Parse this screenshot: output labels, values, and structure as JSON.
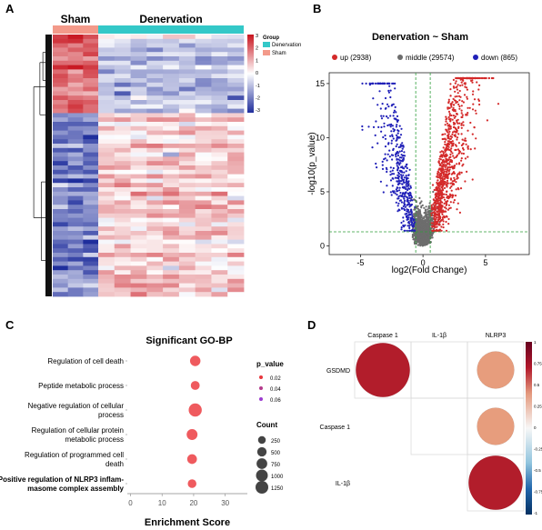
{
  "panels": {
    "A": {
      "letter": "A",
      "groups": [
        "Sham",
        "Denervation"
      ],
      "legend_title": "Group",
      "legend_items": [
        {
          "label": "Denervation",
          "color": "#34c8c8"
        },
        {
          "label": "Sham",
          "color": "#f39a8a"
        }
      ],
      "colorbar_ticks": [
        "3",
        "2",
        "1",
        "0",
        "-1",
        "-2",
        "-3"
      ],
      "colors": {
        "high": "#c8141e",
        "mid": "#ffffff",
        "low": "#1f2e9c"
      }
    },
    "B": {
      "letter": "B"
    },
    "C": {
      "letter": "C"
    },
    "D": {
      "letter": "D"
    }
  },
  "chart_data": [
    {
      "type": "heatmap",
      "panel": "A",
      "columns": {
        "Sham": 3,
        "Denervation": 9
      },
      "clusters": [
        {
          "rows_fraction": 0.3,
          "Sham": 1.8,
          "Denervation": -0.8
        },
        {
          "rows_fraction": 0.7,
          "Sham": -1.8,
          "Denervation": 0.6
        }
      ],
      "scale": [
        -3,
        3
      ]
    },
    {
      "type": "scatter",
      "panel": "B",
      "title": "Denervation ~ Sham",
      "xlabel": "log2(Fold Change)",
      "ylabel": "-log10(p_value)",
      "xlim": [
        -7.5,
        8.5
      ],
      "ylim": [
        -0.8,
        16
      ],
      "x_ticks": [
        -5,
        0,
        5
      ],
      "y_ticks": [
        0,
        5,
        10,
        15
      ],
      "legend": [
        {
          "label": "up (2938)",
          "color": "#d42a2a",
          "count": 2938
        },
        {
          "label": "middle (29574)",
          "color": "#6d6d6d",
          "count": 29574
        },
        {
          "label": "down (865)",
          "color": "#2020b8",
          "count": 865
        }
      ],
      "thresholds": {
        "x": [
          -0.58,
          0.58
        ],
        "y": 1.3
      }
    },
    {
      "type": "scatter",
      "panel": "C",
      "title": "Significant GO-BP",
      "xlabel": "Enrichment Score",
      "xlim": [
        -1,
        37
      ],
      "x_ticks": [
        0,
        10,
        20,
        30
      ],
      "categories": [
        "Regulation of cell death",
        "Peptide metabolic process",
        "Negative regulation of cellular process",
        "Regulation of cellular protein metabolic  process",
        "Regulation of programmed cell death",
        "Positive regulation of NLRP3 inflam-masome complex assembly"
      ],
      "category_lines": [
        [
          "Regulation of cell death"
        ],
        [
          "Peptide metabolic process"
        ],
        [
          "Negative regulation of cellular",
          "process"
        ],
        [
          "Regulation of cellular protein",
          "metabolic  process"
        ],
        [
          "Regulation of programmed cell",
          "death"
        ],
        [
          "Positive regulation of NLRP3 inflam-",
          "masome complex assembly"
        ]
      ],
      "x": [
        20.5,
        20.5,
        20.5,
        19.5,
        19.5,
        19.5
      ],
      "count": [
        700,
        420,
        1350,
        780,
        560,
        380
      ],
      "p_value": [
        0.005,
        0.005,
        0.005,
        0.005,
        0.005,
        0.005
      ],
      "pvalue_legend_title": "p_value",
      "pvalue_legend": [
        {
          "label": "0.02",
          "color": "#e8363c"
        },
        {
          "label": "0.04",
          "color": "#b43a8c"
        },
        {
          "label": "0.06",
          "color": "#9b3bd0"
        }
      ],
      "count_legend_title": "Count",
      "count_legend": [
        250,
        500,
        750,
        1000,
        1250
      ],
      "count_legend_labels": [
        "250",
        "500",
        "750",
        "1000",
        "1250"
      ],
      "point_color": "#ef5a5e"
    },
    {
      "type": "heatmap",
      "panel": "D",
      "col_labels": [
        "Caspase 1",
        "IL-1β",
        "NLRP3"
      ],
      "row_labels": [
        "GSDMD",
        "Caspase 1",
        "IL-1β"
      ],
      "values": [
        [
          0.95,
          0.0,
          0.45
        ],
        [
          null,
          0.0,
          0.45
        ],
        [
          null,
          null,
          0.95
        ]
      ],
      "colorbar_ticks": [
        "1",
        "0.75",
        "0.5",
        "0.25",
        "0",
        "-0.25",
        "-0.5",
        "-0.75",
        "-1"
      ],
      "colors": {
        "pos_strong": "#b21d2b",
        "pos_mid": "#e79d7d",
        "neutral": "#ffffff",
        "neg_strong": "#1d4f91"
      }
    }
  ]
}
